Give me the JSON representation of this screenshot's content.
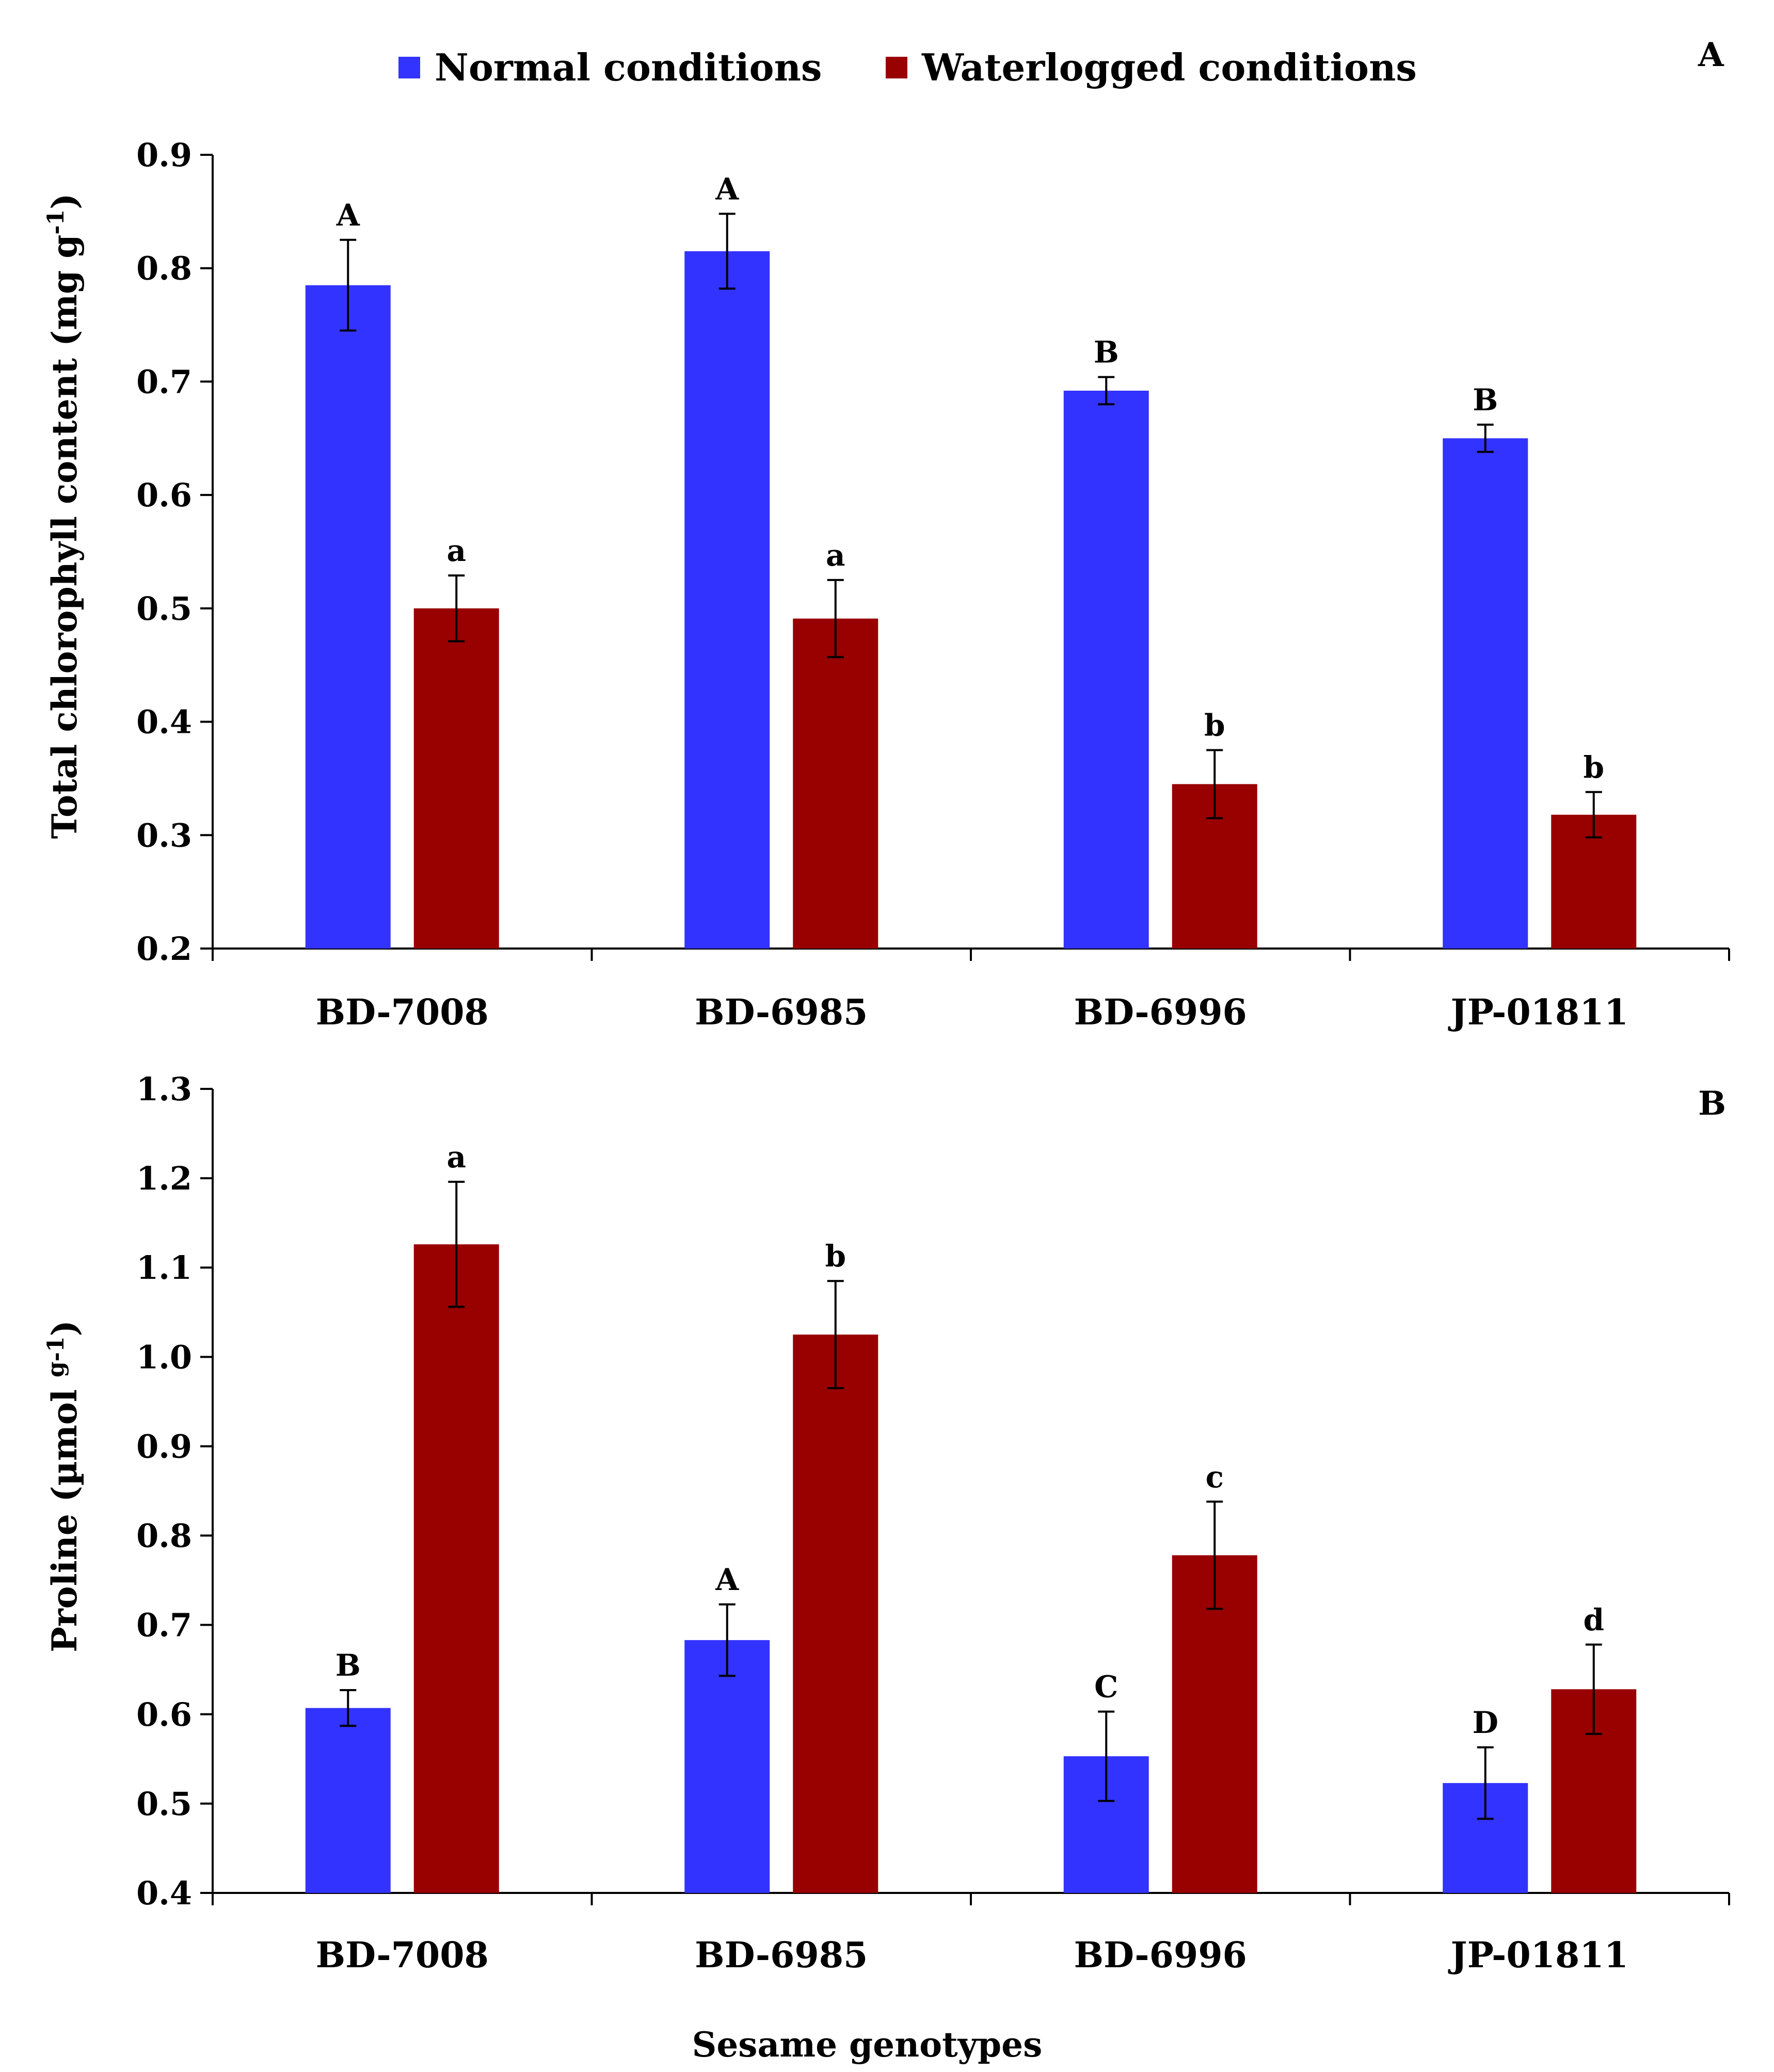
{
  "legend": {
    "items": [
      {
        "label": "Normal conditions",
        "color": "#3333ff"
      },
      {
        "label": "Waterlogged conditions",
        "color": "#990000"
      }
    ]
  },
  "chart_data": [
    {
      "type": "bar",
      "panel_label": "A",
      "title": "",
      "xlabel": "",
      "ylabel": "Total chlorophyll content (mg g-1)",
      "ylabel_parts": {
        "main": "Total chlorophyll content (mg g",
        "sup": "-1",
        "close": ")"
      },
      "ylim": [
        0.2,
        0.9
      ],
      "yticks": [
        "0.2",
        "0.3",
        "0.4",
        "0.5",
        "0.6",
        "0.7",
        "0.8",
        "0.9"
      ],
      "grid": false,
      "legend_position": "top",
      "categories": [
        "BD-7008",
        "BD-6985",
        "BD-6996",
        "JP-01811"
      ],
      "series": [
        {
          "name": "Normal conditions",
          "color": "#3333ff",
          "values": [
            0.785,
            0.815,
            0.692,
            0.65
          ],
          "errors": [
            0.04,
            0.033,
            0.012,
            0.012
          ],
          "labels": [
            "A",
            "A",
            "B",
            "B"
          ]
        },
        {
          "name": "Waterlogged conditions",
          "color": "#990000",
          "values": [
            0.5,
            0.491,
            0.345,
            0.318
          ],
          "errors": [
            0.029,
            0.034,
            0.03,
            0.02
          ],
          "labels": [
            "a",
            "a",
            "b",
            "b"
          ]
        }
      ]
    },
    {
      "type": "bar",
      "panel_label": "B",
      "title": "",
      "xlabel": "Sesame genotypes",
      "ylabel": "Proline (µmol g-1)",
      "ylabel_parts": {
        "main": "Proline (µmol ",
        "sup": "g-1",
        "close": ")"
      },
      "ylim": [
        0.4,
        1.3
      ],
      "yticks": [
        "0.4",
        "0.5",
        "0.6",
        "0.7",
        "0.8",
        "0.9",
        "1.0",
        "1.1",
        "1.2",
        "1.3"
      ],
      "grid": false,
      "categories": [
        "BD-7008",
        "BD-6985",
        "BD-6996",
        "JP-01811"
      ],
      "series": [
        {
          "name": "Normal conditions",
          "color": "#3333ff",
          "values": [
            0.607,
            0.683,
            0.553,
            0.523
          ],
          "errors": [
            0.02,
            0.04,
            0.05,
            0.04
          ],
          "labels": [
            "B",
            "A",
            "C",
            "D"
          ]
        },
        {
          "name": "Waterlogged conditions",
          "color": "#990000",
          "values": [
            1.126,
            1.025,
            0.778,
            0.628
          ],
          "errors": [
            0.07,
            0.06,
            0.06,
            0.05
          ],
          "labels": [
            "a",
            "b",
            "c",
            "d"
          ]
        }
      ]
    }
  ]
}
